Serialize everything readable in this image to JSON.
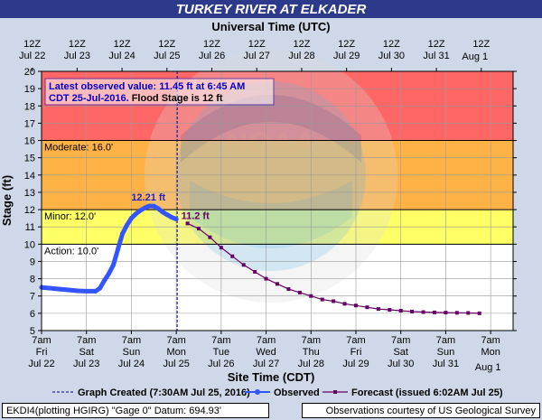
{
  "chart_data": {
    "type": "line",
    "title": "TURKEY RIVER AT ELKADER",
    "top_axis_label": "Universal Time (UTC)",
    "xlabel": "Site Time (CDT)",
    "ylabel": "Stage (ft)",
    "ylim": [
      5,
      20
    ],
    "xlim": [
      0,
      10.5
    ],
    "y_ticks": [
      5,
      6,
      7,
      8,
      9,
      10,
      11,
      12,
      13,
      14,
      15,
      16,
      17,
      18,
      19,
      20
    ],
    "bottom_ticks": [
      {
        "x": 0,
        "l1": "7am",
        "l2": "Fri",
        "l3": "Jul 22"
      },
      {
        "x": 1,
        "l1": "7am",
        "l2": "Sat",
        "l3": "Jul 23"
      },
      {
        "x": 2,
        "l1": "7am",
        "l2": "Sun",
        "l3": "Jul 24"
      },
      {
        "x": 3,
        "l1": "7am",
        "l2": "Mon",
        "l3": "Jul 25"
      },
      {
        "x": 4,
        "l1": "7am",
        "l2": "Tue",
        "l3": "Jul 26"
      },
      {
        "x": 5,
        "l1": "7am",
        "l2": "Wed",
        "l3": "Jul 27"
      },
      {
        "x": 6,
        "l1": "7am",
        "l2": "Thu",
        "l3": "Jul 28"
      },
      {
        "x": 7,
        "l1": "7am",
        "l2": "Fri",
        "l3": "Jul 29"
      },
      {
        "x": 8,
        "l1": "7am",
        "l2": "Sat",
        "l3": "Jul 30"
      },
      {
        "x": 9,
        "l1": "7am",
        "l2": "Sun",
        "l3": "Jul 31"
      },
      {
        "x": 10,
        "l1": "7am",
        "l2": "Mon",
        "l3": "Aug 1"
      }
    ],
    "top_ticks": [
      {
        "x": -0.208,
        "l1": "12Z",
        "l2": "Jul 22"
      },
      {
        "x": 0.792,
        "l1": "12Z",
        "l2": "Jul 23"
      },
      {
        "x": 1.792,
        "l1": "12Z",
        "l2": "Jul 24"
      },
      {
        "x": 2.792,
        "l1": "12Z",
        "l2": "Jul 25"
      },
      {
        "x": 3.792,
        "l1": "12Z",
        "l2": "Jul 26"
      },
      {
        "x": 4.792,
        "l1": "12Z",
        "l2": "Jul 27"
      },
      {
        "x": 5.792,
        "l1": "12Z",
        "l2": "Jul 28"
      },
      {
        "x": 6.792,
        "l1": "12Z",
        "l2": "Jul 29"
      },
      {
        "x": 7.792,
        "l1": "12Z",
        "l2": "Jul 30"
      },
      {
        "x": 8.792,
        "l1": "12Z",
        "l2": "Jul 31"
      },
      {
        "x": 9.792,
        "l1": "12Z",
        "l2": "Aug 1"
      }
    ],
    "bands": [
      {
        "from": 5,
        "to": 10,
        "color": "#ffffff"
      },
      {
        "from": 10,
        "to": 12,
        "color": "#ffff66"
      },
      {
        "from": 12,
        "to": 16,
        "color": "#ffb347"
      },
      {
        "from": 16,
        "to": 20,
        "color": "#ff6666"
      }
    ],
    "stage_lines": [
      {
        "y": 10,
        "label": "Action: 10.0'"
      },
      {
        "y": 12,
        "label": "Minor: 12.0'"
      },
      {
        "y": 16,
        "label": "Moderate: 16.0'"
      }
    ],
    "graph_created_x": 3.02,
    "series": [
      {
        "name": "Observed",
        "color": "#3355ff",
        "x": [
          0,
          0.2,
          0.4,
          0.6,
          0.8,
          1.0,
          1.2,
          1.3,
          1.4,
          1.5,
          1.6,
          1.7,
          1.8,
          1.9,
          2.0,
          2.1,
          2.2,
          2.3,
          2.4,
          2.5,
          2.6,
          2.7,
          2.8,
          2.9,
          3.0
        ],
        "y": [
          7.5,
          7.45,
          7.4,
          7.35,
          7.3,
          7.28,
          7.28,
          7.45,
          7.9,
          8.3,
          8.8,
          9.7,
          10.6,
          11.1,
          11.5,
          11.75,
          11.95,
          12.1,
          12.21,
          12.2,
          12.05,
          11.85,
          11.7,
          11.55,
          11.45
        ]
      },
      {
        "name": "Forecast (issued 6:02AM Jul 25)",
        "color": "#660066",
        "x": [
          3.25,
          3.5,
          3.75,
          4.0,
          4.25,
          4.5,
          4.75,
          5.0,
          5.25,
          5.5,
          5.75,
          6.0,
          6.25,
          6.5,
          6.75,
          7.0,
          7.25,
          7.5,
          7.75,
          8.0,
          8.25,
          8.5,
          8.75,
          9.0,
          9.25,
          9.5,
          9.75
        ],
        "y": [
          11.2,
          10.9,
          10.4,
          9.8,
          9.3,
          8.8,
          8.4,
          8.0,
          7.7,
          7.4,
          7.2,
          7.0,
          6.8,
          6.7,
          6.55,
          6.45,
          6.35,
          6.25,
          6.2,
          6.15,
          6.1,
          6.07,
          6.05,
          6.04,
          6.03,
          6.02,
          6.0
        ]
      }
    ],
    "peak_label": {
      "x": 2.4,
      "y": 12.21,
      "text": "12.21 ft"
    },
    "forecast_start_label": {
      "x": 3.25,
      "y": 11.2,
      "text": "11.2 ft"
    },
    "info_box": {
      "line1": "Latest observed value: 11.45 ft at 6:45 AM",
      "line2_part1": "CDT 25-Jul-2016.",
      "line2_part2": " Flood Stage is 12 ft"
    },
    "legend": {
      "graph_created": "Graph Created (7:30AM Jul 25, 2016)",
      "observed": "Observed",
      "forecast": "Forecast (issued 6:02AM Jul 25)"
    }
  },
  "footer": {
    "left": "EKDI4(plotting HGIRG) \"Gage 0\" Datum: 694.93'",
    "right": "Observations courtesy of US Geological Survey"
  },
  "colors": {
    "title_bg": "#2d3a8c",
    "page_bg": "#cfd8e8",
    "observed": "#3355ff",
    "forecast": "#660066",
    "info_text": "#0000cc",
    "label_text": "#2222cc"
  }
}
